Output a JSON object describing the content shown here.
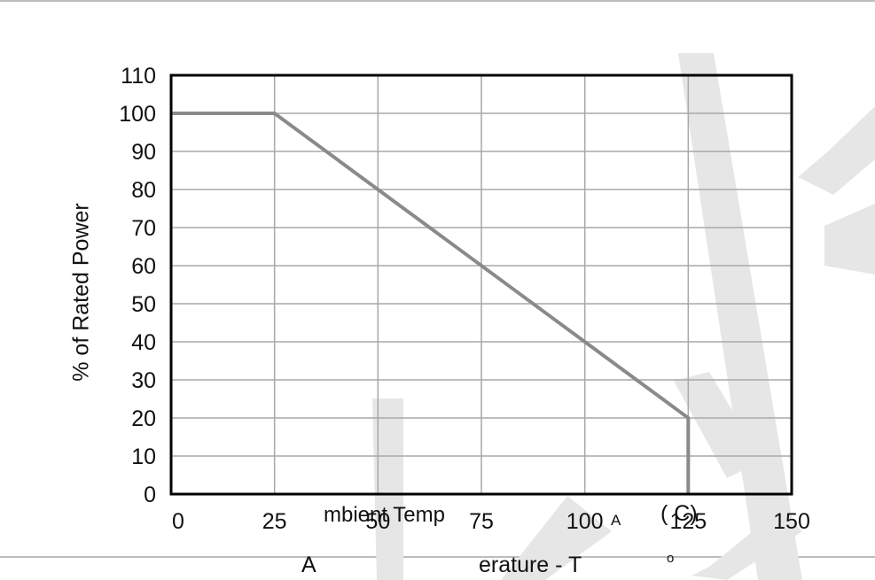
{
  "chart_data": {
    "type": "line",
    "xlim": [
      0,
      150
    ],
    "ylim": [
      0,
      110
    ],
    "x_ticks": [
      "0",
      "25",
      "50",
      "75",
      "100",
      "125",
      "150"
    ],
    "y_ticks": [
      "0",
      "10",
      "20",
      "30",
      "40",
      "50",
      "60",
      "70",
      "80",
      "90",
      "100",
      "110"
    ],
    "grid": true,
    "ylabel": "% of Rated Power",
    "xlabel_fragments": {
      "part1": "A",
      "part2": "mbient Temp",
      "part3": "erature  - T",
      "subscript": "A",
      "unit": "( C)",
      "superscript": "o"
    },
    "series": [
      {
        "x": [
          0,
          25,
          125,
          125
        ],
        "y": [
          100,
          100,
          20,
          0
        ],
        "color": "#8a8a8a"
      }
    ]
  }
}
